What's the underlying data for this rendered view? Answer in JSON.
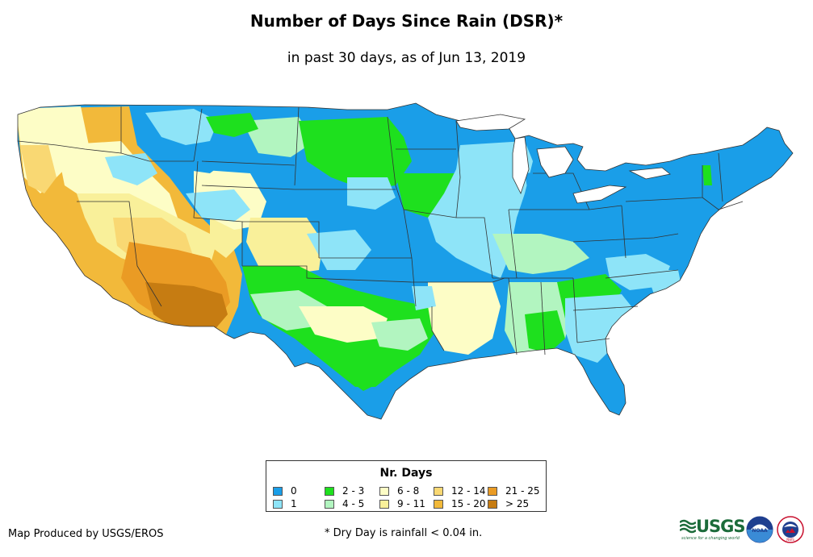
{
  "header": {
    "title": "Number of Days Since Rain (DSR)*",
    "subtitle": "in past 30 days, as of Jun 13, 2019"
  },
  "legend": {
    "title": "Nr. Days",
    "items": [
      {
        "label": "0",
        "color": "#1a9ee8"
      },
      {
        "label": "1",
        "color": "#8ee4f8"
      },
      {
        "label": "2 - 3",
        "color": "#1ee01e"
      },
      {
        "label": "4 - 5",
        "color": "#b2f5c0"
      },
      {
        "label": "6 - 8",
        "color": "#fdfdc6"
      },
      {
        "label": "9 - 11",
        "color": "#f9f09a"
      },
      {
        "label": "12 - 14",
        "color": "#f9d873"
      },
      {
        "label": "15 - 20",
        "color": "#f2b93a"
      },
      {
        "label": "21 - 25",
        "color": "#ea9b24"
      },
      {
        "label": "> 25",
        "color": "#c67c12"
      }
    ]
  },
  "footer": {
    "producer": "Map Produced by USGS/EROS",
    "footnote": "* Dry Day is rainfall < 0.04 in.",
    "usgs_word": "USGS",
    "usgs_tagline": "science for a changing world",
    "noaa_text": "NOAA",
    "nws_text": "NWS"
  }
}
